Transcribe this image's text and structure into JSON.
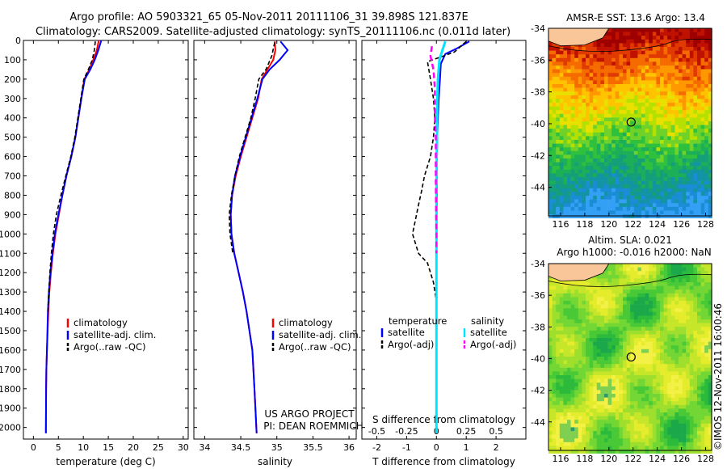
{
  "title_line1": "Argo profile: AO 5903321_65 05-Nov-2011 20111106_31 39.898S 121.837E",
  "title_line2": "Climatology: CARS2009. Satellite-adjusted climatology: synTS_20111106.nc (0.011d later)",
  "sst_title": "AMSR-E SST: 13.6 Argo: 13.4",
  "sla_title1": "Altim. SLA: 0.021",
  "sla_title2": "Argo h1000: -0.016 h2000: NaN",
  "project_line1": "US ARGO PROJECT",
  "project_line2": "PI: DEAN ROEMMICH",
  "credit": "©IMOS 12-Nov-2011 16:00:46",
  "colors": {
    "climatology": "#ff0000",
    "satellite": "#0000ff",
    "argo": "#000000",
    "sal_satellite": "#00e5ff",
    "sal_argo": "#ff00ff"
  },
  "chart_data": [
    {
      "type": "line",
      "name": "temperature",
      "xlabel": "temperature (deg C)",
      "ylabel": "",
      "xlim": [
        -2,
        31
      ],
      "ylim": [
        2060,
        0
      ],
      "xticks": [
        0,
        5,
        10,
        15,
        20,
        25,
        30
      ],
      "yticks": [
        0,
        100,
        200,
        300,
        400,
        500,
        600,
        700,
        800,
        900,
        1000,
        1100,
        1200,
        1300,
        1400,
        1500,
        1600,
        1700,
        1800,
        1900,
        2000
      ],
      "legend": [
        "climatology",
        "satellite-adj. clim.",
        "Argo(..raw -QC)"
      ],
      "series": [
        {
          "name": "climatology",
          "x": [
            13.1,
            12.7,
            12.0,
            11.2,
            10.2,
            9.6,
            9.0,
            8.4,
            7.6,
            6.6,
            5.8,
            5.1,
            4.4,
            3.9,
            3.5,
            3.2,
            3.0,
            2.85,
            2.7,
            2.6,
            2.55,
            2.5
          ],
          "y": [
            0,
            50,
            100,
            150,
            200,
            300,
            400,
            500,
            600,
            700,
            800,
            900,
            1000,
            1100,
            1200,
            1300,
            1400,
            1500,
            1600,
            1700,
            1800,
            2030
          ]
        },
        {
          "name": "satellite-adj. clim.",
          "x": [
            13.6,
            13.0,
            12.3,
            11.4,
            10.3,
            9.6,
            9.0,
            8.4,
            7.6,
            6.6,
            5.8,
            5.0,
            4.3,
            3.8,
            3.4,
            3.1,
            2.9,
            2.8,
            2.7,
            2.6,
            2.55,
            2.5
          ],
          "y": [
            0,
            50,
            100,
            150,
            200,
            300,
            400,
            500,
            600,
            700,
            800,
            900,
            1000,
            1100,
            1200,
            1300,
            1400,
            1500,
            1600,
            1700,
            1800,
            2030
          ]
        },
        {
          "name": "Argo(..raw -QC)",
          "x": [
            12.4,
            12.2,
            11.8,
            11.0,
            10.1,
            9.5,
            8.9,
            8.3,
            7.5,
            6.5,
            5.5,
            4.6,
            4.0,
            3.6,
            3.3,
            3.1,
            2.9
          ],
          "y": [
            5,
            50,
            100,
            150,
            200,
            300,
            400,
            500,
            600,
            700,
            800,
            900,
            1000,
            1100,
            1200,
            1300,
            1400
          ]
        }
      ]
    },
    {
      "type": "line",
      "name": "salinity",
      "xlabel": "salinity",
      "xlim": [
        33.85,
        36.1
      ],
      "ylim": [
        2060,
        0
      ],
      "xticks": [
        34,
        34.5,
        35,
        35.5,
        36
      ],
      "legend": [
        "climatology",
        "satellite-adj. clim.",
        "Argo(..raw -QC)"
      ],
      "series": [
        {
          "name": "climatology",
          "x": [
            34.97,
            34.98,
            34.95,
            34.87,
            34.79,
            34.74,
            34.66,
            34.58,
            34.5,
            34.43,
            34.38,
            34.36,
            34.37,
            34.41,
            34.47,
            34.53,
            34.58,
            34.62,
            34.66,
            34.69,
            34.72
          ],
          "y": [
            5,
            50,
            100,
            150,
            200,
            300,
            400,
            500,
            600,
            700,
            800,
            900,
            1000,
            1100,
            1200,
            1300,
            1400,
            1500,
            1600,
            1800,
            2030
          ]
        },
        {
          "name": "satellite-adj. clim.",
          "x": [
            35.05,
            35.15,
            35.04,
            34.9,
            34.8,
            34.73,
            34.65,
            34.57,
            34.49,
            34.42,
            34.38,
            34.36,
            34.37,
            34.41,
            34.47,
            34.53,
            34.58,
            34.62,
            34.66,
            34.69,
            34.72
          ],
          "y": [
            5,
            50,
            100,
            150,
            200,
            300,
            400,
            500,
            600,
            700,
            800,
            900,
            1000,
            1100,
            1200,
            1300,
            1400,
            1500,
            1600,
            1800,
            2030
          ]
        },
        {
          "name": "Argo(..raw -QC)",
          "x": [
            34.97,
            34.93,
            34.85,
            34.75,
            34.7,
            34.64,
            34.56,
            34.48,
            34.42,
            34.37,
            34.34,
            34.35,
            34.39
          ],
          "y": [
            10,
            80,
            150,
            200,
            300,
            400,
            500,
            600,
            700,
            800,
            900,
            1000,
            1100
          ]
        }
      ]
    },
    {
      "type": "line",
      "name": "difference",
      "xlabel": "T difference from climatology",
      "xlabel_top": "S difference from climatology",
      "xlim": [
        -2.5,
        3
      ],
      "ylim": [
        2060,
        0
      ],
      "xticks": [
        -2,
        -1,
        0,
        1,
        2
      ],
      "sticks": [
        "-0.5",
        "-0.25",
        "0",
        "0.25",
        "0.5"
      ],
      "legend_titles": [
        "temperature",
        "salinity"
      ],
      "legend": [
        "satellite",
        "Argo(-adj)",
        "satellite",
        "Argo(-adj)"
      ],
      "series": [
        {
          "name": "temperature satellite",
          "x": [
            1.1,
            0.7,
            0.3,
            0.15,
            0.12,
            0.08,
            0.05,
            0.03,
            0.02,
            0.02,
            0.02,
            0.01,
            0.01,
            0,
            0,
            0,
            0,
            0
          ],
          "y": [
            5,
            40,
            70,
            120,
            200,
            300,
            400,
            500,
            600,
            700,
            800,
            900,
            1000,
            1100,
            1200,
            1500,
            1800,
            2030
          ]
        },
        {
          "name": "temperature Argo(-adj)",
          "x": [
            1.0,
            0.6,
            -0.3,
            -0.2,
            -0.1,
            -0.05,
            -0.1,
            -0.2,
            -0.4,
            -0.5,
            -0.6,
            -0.8,
            -0.6,
            -0.3,
            -0.1,
            0
          ],
          "y": [
            5,
            60,
            110,
            200,
            300,
            400,
            500,
            600,
            700,
            780,
            850,
            1000,
            1100,
            1150,
            1250,
            1350
          ]
        },
        {
          "name": "salinity satellite",
          "x": [
            0.3,
            0.2,
            0.1,
            0.05,
            0.03,
            0.02,
            0.02,
            0.01,
            0.01,
            0,
            0,
            0,
            0,
            0
          ],
          "y": [
            5,
            50,
            100,
            200,
            300,
            400,
            500,
            600,
            700,
            800,
            900,
            1000,
            1500,
            2030
          ]
        },
        {
          "name": "salinity Argo(-adj)",
          "x": [
            -0.15,
            -0.2,
            -0.1,
            -0.05,
            -0.05,
            -0.02,
            -0.02,
            -0.01,
            0,
            0
          ],
          "y": [
            30,
            80,
            150,
            250,
            400,
            500,
            700,
            900,
            1000,
            1100
          ]
        }
      ]
    },
    {
      "type": "heatmap",
      "name": "sst-map",
      "title": "AMSR-E SST: 13.6 Argo: 13.4",
      "xlim": [
        115,
        128.5
      ],
      "ylim": [
        -45.8,
        -34
      ],
      "xticks": [
        116,
        118,
        120,
        122,
        124,
        126,
        128
      ],
      "yticks": [
        -34,
        -36,
        -38,
        -40,
        -42,
        -44
      ],
      "argo_position": {
        "lon": 121.837,
        "lat": -39.898
      }
    },
    {
      "type": "heatmap",
      "name": "sla-map",
      "title": "Altim. SLA: 0.021",
      "xlim": [
        115,
        128.5
      ],
      "ylim": [
        -45.8,
        -34
      ],
      "xticks": [
        116,
        118,
        120,
        122,
        124,
        126,
        128
      ],
      "yticks": [
        -34,
        -36,
        -38,
        -40,
        -42,
        -44
      ],
      "argo_position": {
        "lon": 121.837,
        "lat": -39.898
      }
    }
  ]
}
